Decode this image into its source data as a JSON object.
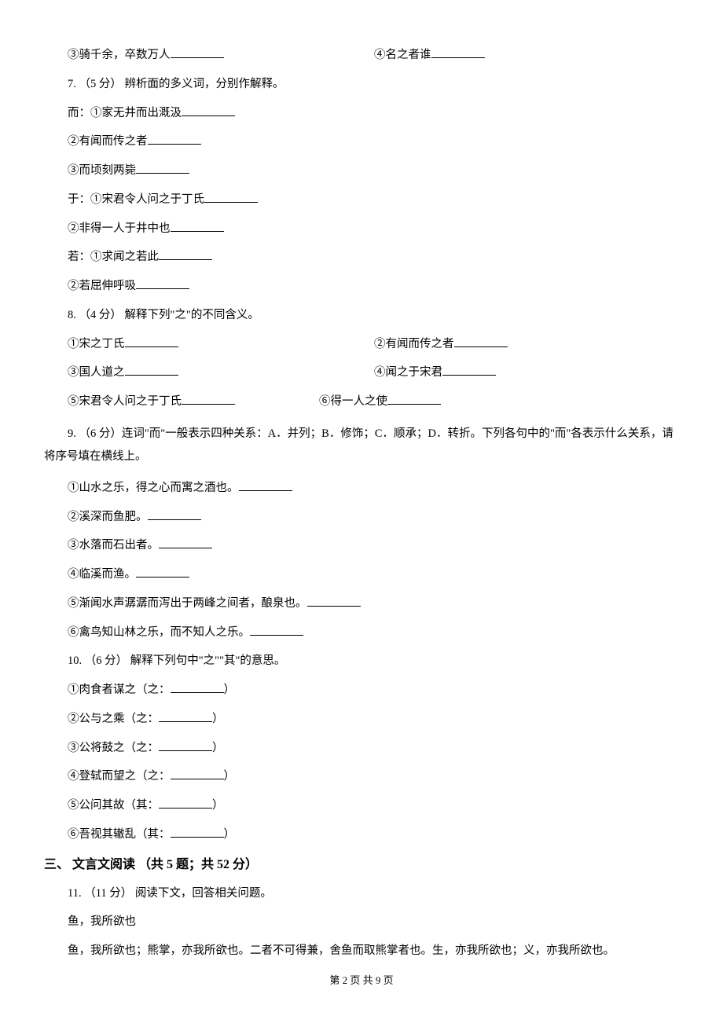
{
  "q6": {
    "opt3": "③骑千余，卒数万人",
    "opt4": "④名之者谁"
  },
  "q7": {
    "intro": "7. （5 分） 辨析面的多义词，分别作解释。",
    "er_label": "而：①家无井而出溉汲",
    "er2": "②有闻而传之者",
    "er3": "③而顷刻两毙",
    "yu_label": "于：①宋君令人问之于丁氏",
    "yu2": "②非得一人于井中也",
    "ruo_label": "若：①求闻之若此",
    "ruo2": "②若屈伸呼吸"
  },
  "q8": {
    "intro": "8. （4 分） 解释下列\"之\"的不同含义。",
    "i1": "①宋之丁氏",
    "i2": "②有闻而传之者",
    "i3": "③国人道之",
    "i4": "④闻之于宋君",
    "i5": "⑤宋君令人问之于丁氏",
    "i6": "⑥得一人之使"
  },
  "q9": {
    "intro": "9. （6 分）连词\"而\"一般表示四种关系：A．并列；B．修饰；C．顺承；D．转折。下列各句中的\"而\"各表示什么关系，请将序号填在横线上。",
    "i1": "①山水之乐，得之心而寓之酒也。",
    "i2": "②溪深而鱼肥。",
    "i3": "③水落而石出者。",
    "i4": "④临溪而渔。",
    "i5": "⑤渐闻水声潺潺而泻出于两峰之间者，酿泉也。",
    "i6": "⑥禽鸟知山林之乐，而不知人之乐。"
  },
  "q10": {
    "intro": "10. （6 分） 解释下列句中\"之\"\"其\"的意思。",
    "i1a": "①肉食者谋之（之：",
    "i2a": "②公与之乘（之：",
    "i3a": "③公将鼓之（之：",
    "i4a": "④登轼而望之（之：",
    "i5a": "⑤公问其故（其：",
    "i6a": "⑥吾视其辙乱（其：",
    "close": "）"
  },
  "section3": {
    "title": "三、 文言文阅读 （共 5 题；共 52 分）"
  },
  "q11": {
    "intro": "11. （11 分） 阅读下文，回答相关问题。",
    "title": "鱼，我所欲也",
    "body": "鱼，我所欲也；熊掌，亦我所欲也。二者不可得兼，舍鱼而取熊掌者也。生，亦我所欲也；义，亦我所欲也。"
  },
  "footer": "第 2 页 共 9 页"
}
